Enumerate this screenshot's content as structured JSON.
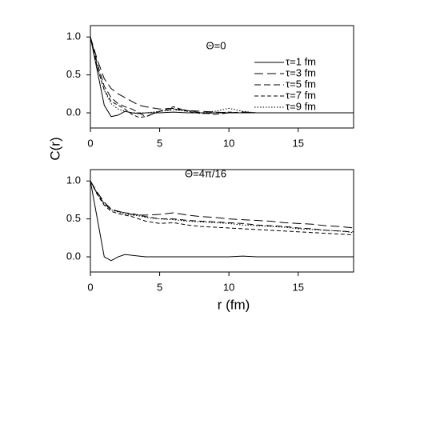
{
  "chart_data": [
    {
      "type": "line",
      "annotation": "Θ=0",
      "ylabel": "C(r)",
      "legend": "upper right",
      "x": [
        0,
        0.5,
        1,
        1.5,
        2,
        2.5,
        3,
        3.5,
        4,
        5,
        6,
        7,
        8,
        9,
        10,
        11,
        12,
        13,
        14,
        15,
        16,
        17,
        18,
        19
      ],
      "xlim": [
        0,
        19
      ],
      "xticks": [
        0,
        5,
        10,
        15
      ],
      "ylim": [
        -0.2,
        1.15
      ],
      "yticks": [
        {
          "value": 0,
          "label": "0.0"
        },
        {
          "value": 0.5,
          "label": "0.5"
        },
        {
          "value": 1,
          "label": "1.0"
        }
      ],
      "series": [
        {
          "name": "τ=1 fm",
          "color": "#000000",
          "dash": "solid",
          "values": [
            1.0,
            0.55,
            0.1,
            -0.05,
            -0.03,
            0.02,
            0.0,
            -0.01,
            0.0,
            0.0,
            0.01,
            0,
            0,
            0,
            0,
            0,
            0,
            0,
            0,
            0,
            0,
            0,
            0,
            0
          ]
        },
        {
          "name": "τ=3 fm",
          "color": "#000000",
          "dash": "long",
          "values": [
            1.0,
            0.7,
            0.45,
            0.32,
            0.25,
            0.2,
            0.15,
            0.1,
            0.08,
            0.05,
            0.06,
            0.03,
            0.02,
            0.01,
            0.0,
            0.01,
            0,
            0,
            0,
            0,
            0,
            0,
            0,
            0
          ]
        },
        {
          "name": "τ=5 fm",
          "color": "#000000",
          "dash": "medium",
          "values": [
            1.0,
            0.65,
            0.35,
            0.2,
            0.12,
            0.08,
            0.05,
            0.0,
            -0.05,
            0.02,
            0.05,
            0.03,
            0.0,
            -0.02,
            0,
            0.01,
            0,
            0,
            0,
            0,
            0,
            0,
            0,
            0
          ]
        },
        {
          "name": "τ=7 fm",
          "color": "#000000",
          "dash": "short",
          "values": [
            1.0,
            0.6,
            0.3,
            0.15,
            0.1,
            0.05,
            -0.02,
            -0.06,
            -0.05,
            0.02,
            0.08,
            0.02,
            -0.01,
            0,
            0.01,
            0,
            0,
            0,
            0,
            0,
            0,
            0,
            0,
            0
          ]
        },
        {
          "name": "τ=9 fm",
          "color": "#000000",
          "dash": "dotted",
          "values": [
            1.0,
            0.6,
            0.3,
            0.12,
            0.05,
            0.02,
            0.0,
            0.0,
            0.0,
            0.02,
            0.04,
            0.02,
            0.0,
            0.02,
            0.06,
            0.02,
            0,
            0,
            0,
            0,
            0,
            0,
            0,
            0
          ]
        }
      ]
    },
    {
      "type": "line",
      "annotation": "Θ=4π/16",
      "xlabel": "r (fm)",
      "x": [
        0,
        0.5,
        1,
        1.5,
        2,
        2.5,
        3,
        3.5,
        4,
        5,
        6,
        7,
        8,
        9,
        10,
        11,
        12,
        13,
        14,
        15,
        16,
        17,
        18,
        19
      ],
      "xlim": [
        0,
        19
      ],
      "xticks": [
        0,
        5,
        10,
        15
      ],
      "ylim": [
        -0.2,
        1.15
      ],
      "yticks": [
        {
          "value": 0,
          "label": "0.0"
        },
        {
          "value": 0.5,
          "label": "0.5"
        },
        {
          "value": 1,
          "label": "1.0"
        }
      ],
      "series": [
        {
          "color": "#000000",
          "dash": "solid",
          "values": [
            1.0,
            0.5,
            0.0,
            -0.05,
            0.0,
            0.03,
            0.02,
            0.01,
            0,
            0,
            0,
            0,
            0,
            0,
            0,
            0.01,
            0,
            0,
            0,
            0,
            0,
            0,
            0,
            0
          ]
        },
        {
          "color": "#000000",
          "dash": "long",
          "values": [
            1.0,
            0.85,
            0.72,
            0.63,
            0.6,
            0.58,
            0.56,
            0.55,
            0.55,
            0.56,
            0.58,
            0.55,
            0.53,
            0.52,
            0.5,
            0.49,
            0.48,
            0.47,
            0.45,
            0.44,
            0.43,
            0.41,
            0.4,
            0.38
          ]
        },
        {
          "color": "#000000",
          "dash": "medium",
          "values": [
            1.0,
            0.83,
            0.7,
            0.62,
            0.6,
            0.58,
            0.57,
            0.55,
            0.53,
            0.5,
            0.5,
            0.48,
            0.47,
            0.46,
            0.45,
            0.44,
            0.42,
            0.41,
            0.4,
            0.38,
            0.37,
            0.35,
            0.34,
            0.33
          ]
        },
        {
          "color": "#000000",
          "dash": "short",
          "values": [
            1.0,
            0.82,
            0.68,
            0.6,
            0.57,
            0.55,
            0.53,
            0.5,
            0.47,
            0.44,
            0.45,
            0.42,
            0.4,
            0.39,
            0.38,
            0.37,
            0.36,
            0.35,
            0.34,
            0.33,
            0.32,
            0.31,
            0.3,
            0.29
          ]
        },
        {
          "color": "#000000",
          "dash": "dotted",
          "values": [
            1.0,
            0.83,
            0.7,
            0.62,
            0.59,
            0.56,
            0.55,
            0.54,
            0.52,
            0.5,
            0.49,
            0.47,
            0.46,
            0.45,
            0.44,
            0.42,
            0.41,
            0.4,
            0.39,
            0.37,
            0.36,
            0.35,
            0.34,
            0.32
          ]
        }
      ]
    }
  ]
}
